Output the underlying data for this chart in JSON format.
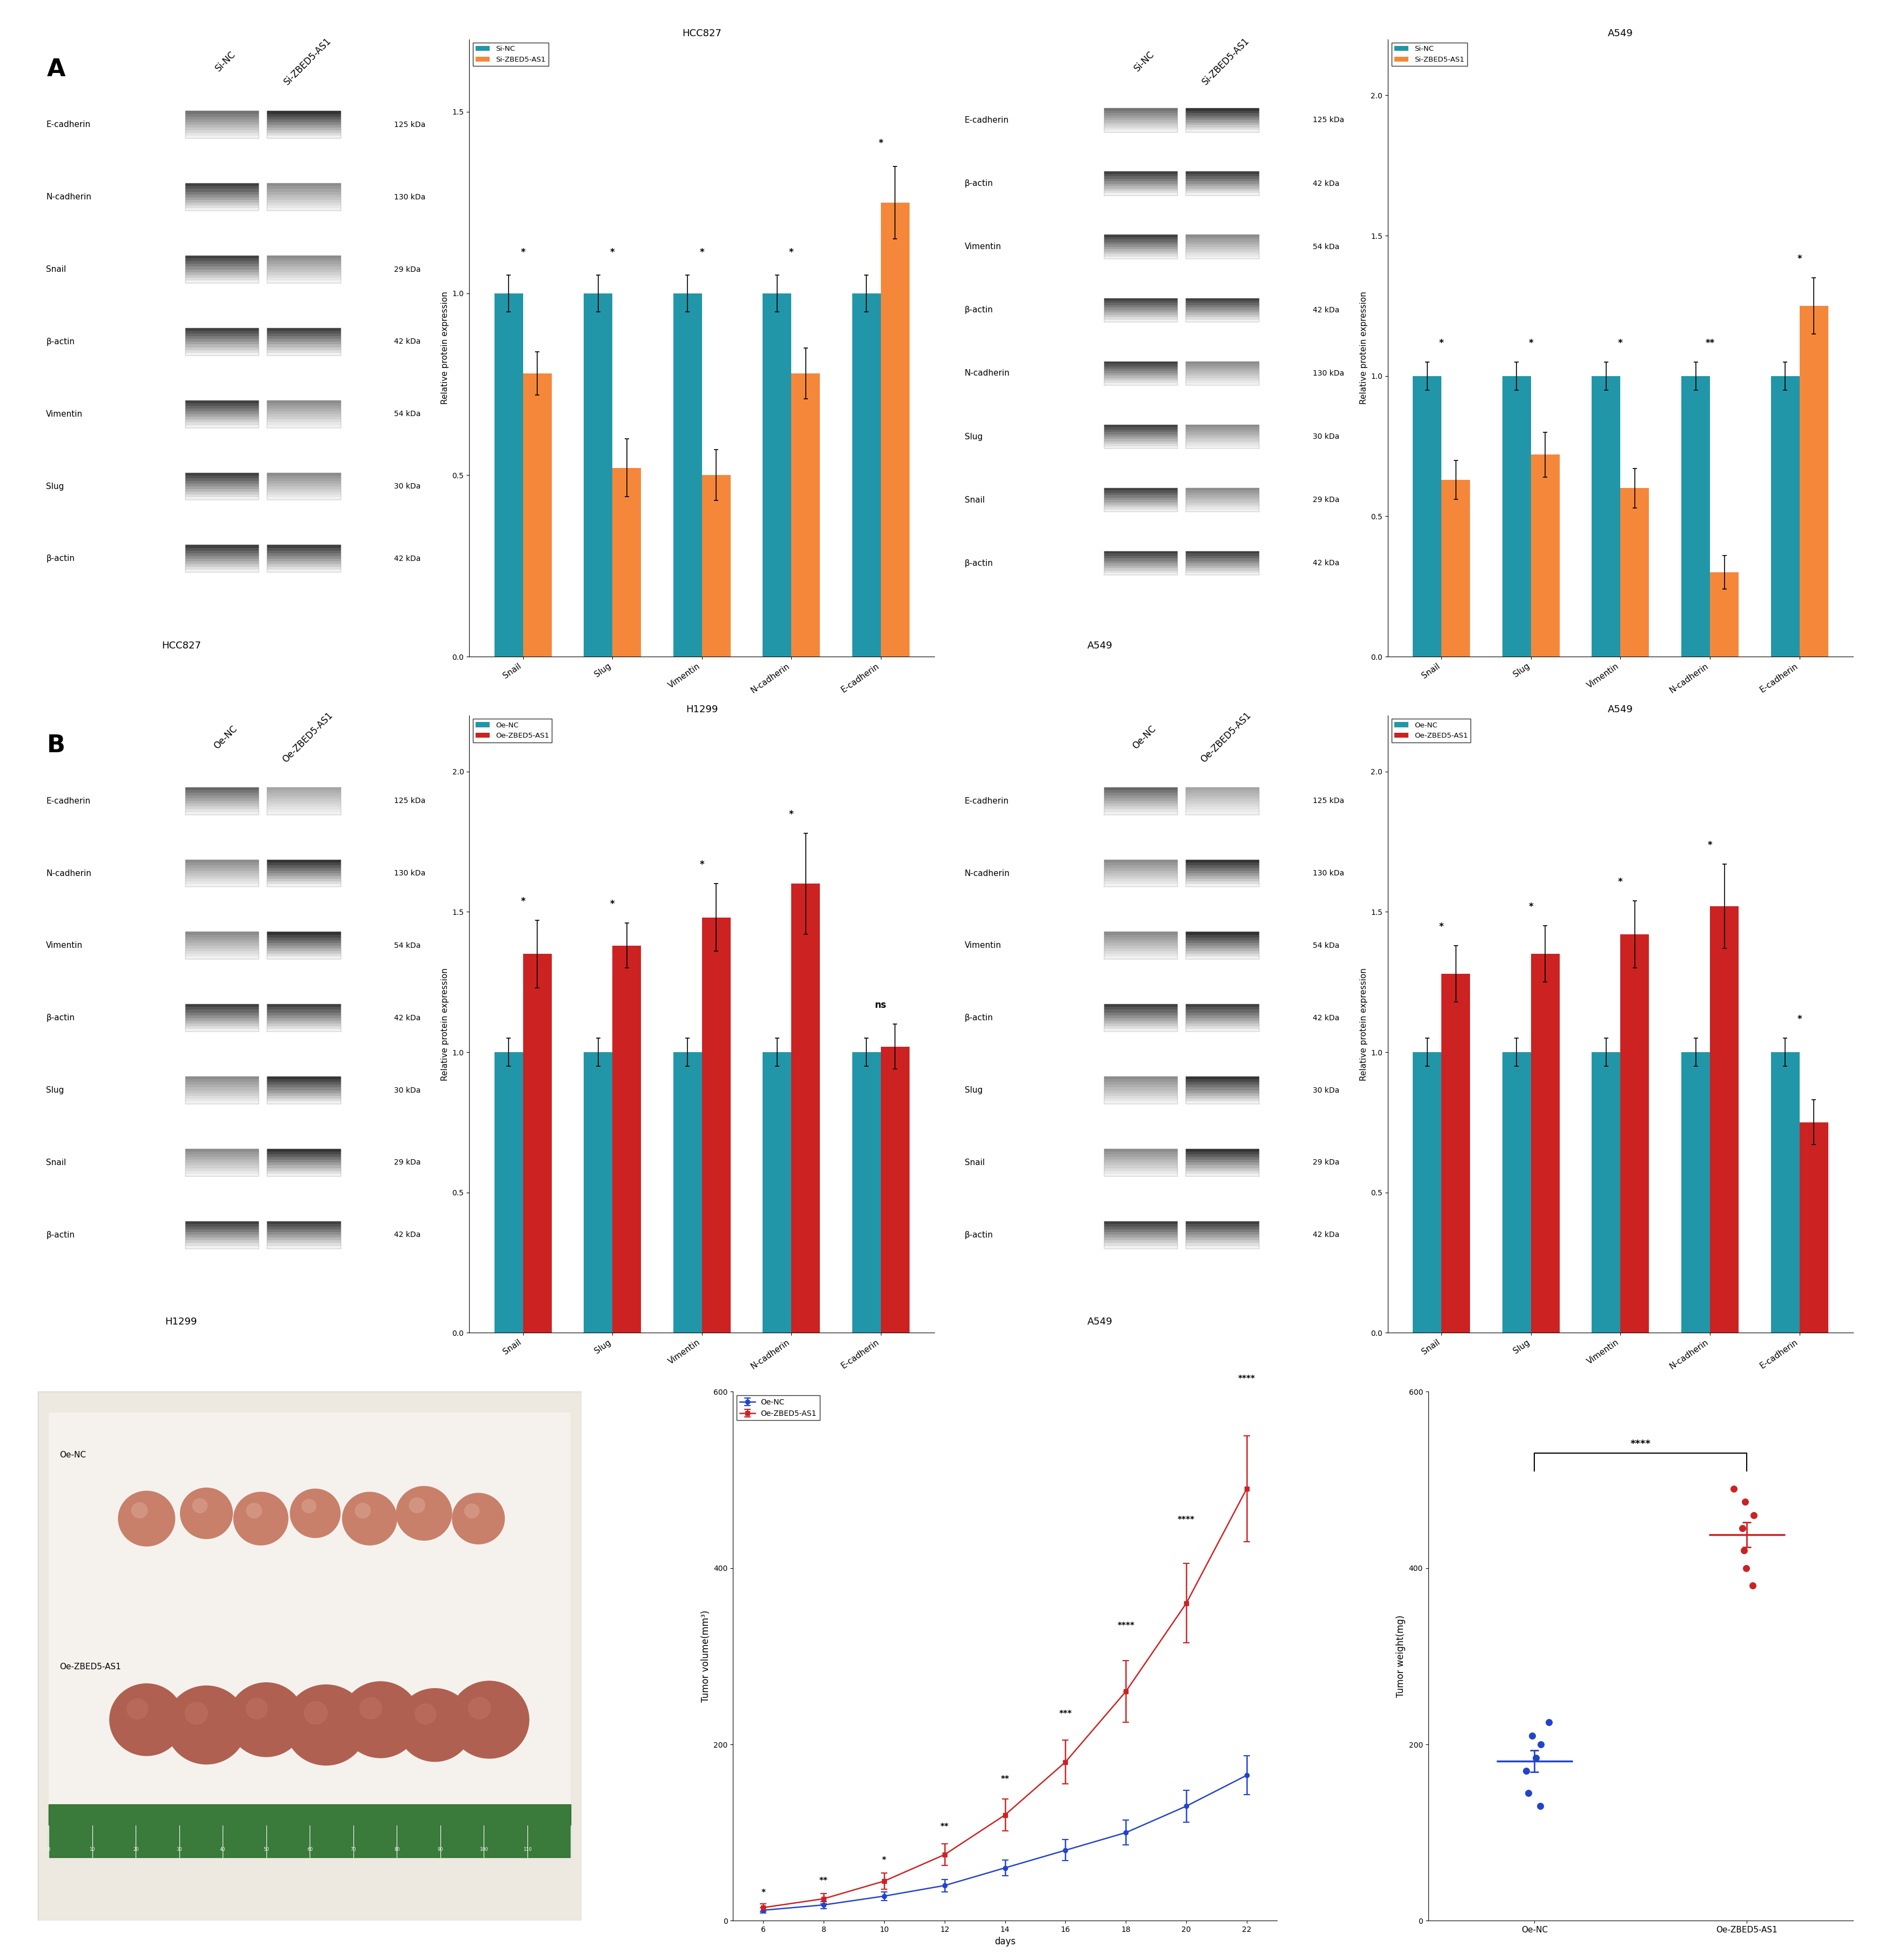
{
  "panel_A_HCC827": {
    "title": "HCC827",
    "categories": [
      "Snail",
      "Slug",
      "Vimentin",
      "N-cadherin",
      "E-cadherin"
    ],
    "si_nc": [
      1.0,
      1.0,
      1.0,
      1.0,
      1.0
    ],
    "si_treatment": [
      0.78,
      0.52,
      0.5,
      0.78,
      1.25
    ],
    "si_nc_err": [
      0.05,
      0.05,
      0.05,
      0.05,
      0.05
    ],
    "si_treatment_err": [
      0.06,
      0.08,
      0.07,
      0.07,
      0.1
    ],
    "ylim": [
      0,
      1.7
    ],
    "yticks": [
      0.0,
      0.5,
      1.0,
      1.5
    ],
    "ylabel": "Relative protein expression",
    "legend1": "Si-NC",
    "legend2": "Si-ZBED5-AS1",
    "color1": "#2196A8",
    "color2": "#F5873B",
    "sig": [
      "*",
      "*",
      "*",
      "*",
      "*"
    ]
  },
  "panel_A_A549": {
    "title": "A549",
    "categories": [
      "Snail",
      "Slug",
      "Vimentin",
      "N-cadherin",
      "E-cadherin"
    ],
    "si_nc": [
      1.0,
      1.0,
      1.0,
      1.0,
      1.0
    ],
    "si_treatment": [
      0.63,
      0.72,
      0.6,
      0.3,
      1.25
    ],
    "si_nc_err": [
      0.05,
      0.05,
      0.05,
      0.05,
      0.05
    ],
    "si_treatment_err": [
      0.07,
      0.08,
      0.07,
      0.06,
      0.1
    ],
    "ylim": [
      0,
      2.2
    ],
    "yticks": [
      0.0,
      0.5,
      1.0,
      1.5,
      2.0
    ],
    "ylabel": "Relative protein expression",
    "legend1": "Si-NC",
    "legend2": "Si-ZBED5-AS1",
    "color1": "#2196A8",
    "color2": "#F5873B",
    "sig": [
      "*",
      "*",
      "*",
      "**",
      "*"
    ]
  },
  "panel_B_H1299": {
    "title": "H1299",
    "categories": [
      "Snail",
      "Slug",
      "Vimentin",
      "N-cadherin",
      "E-cadherin"
    ],
    "oe_nc": [
      1.0,
      1.0,
      1.0,
      1.0,
      1.0
    ],
    "oe_treatment": [
      1.35,
      1.38,
      1.48,
      1.6,
      1.02
    ],
    "oe_nc_err": [
      0.05,
      0.05,
      0.05,
      0.05,
      0.05
    ],
    "oe_treatment_err": [
      0.12,
      0.08,
      0.12,
      0.18,
      0.08
    ],
    "ylim": [
      0,
      2.2
    ],
    "yticks": [
      0.0,
      0.5,
      1.0,
      1.5,
      2.0
    ],
    "ylabel": "Relative protein expression",
    "legend1": "Oe-NC",
    "legend2": "Oe-ZBED5-AS1",
    "color1": "#2196A8",
    "color2": "#CC2222",
    "sig": [
      "*",
      "*",
      "*",
      "*",
      "ns"
    ]
  },
  "panel_B_A549": {
    "title": "A549",
    "categories": [
      "Snail",
      "Slug",
      "Vimentin",
      "N-cadherin",
      "E-cadherin"
    ],
    "oe_nc": [
      1.0,
      1.0,
      1.0,
      1.0,
      1.0
    ],
    "oe_treatment": [
      1.28,
      1.35,
      1.42,
      1.52,
      0.75
    ],
    "oe_nc_err": [
      0.05,
      0.05,
      0.05,
      0.05,
      0.05
    ],
    "oe_treatment_err": [
      0.1,
      0.1,
      0.12,
      0.15,
      0.08
    ],
    "ylim": [
      0,
      2.2
    ],
    "yticks": [
      0.0,
      0.5,
      1.0,
      1.5,
      2.0
    ],
    "ylabel": "Relative protein expression",
    "legend1": "Oe-NC",
    "legend2": "Oe-ZBED5-AS1",
    "color1": "#2196A8",
    "color2": "#CC2222",
    "sig": [
      "*",
      "*",
      "*",
      "*",
      "*"
    ]
  },
  "panel_C_volume": {
    "days": [
      6,
      8,
      10,
      12,
      14,
      16,
      18,
      20,
      22
    ],
    "oe_nc_mean": [
      12,
      18,
      28,
      40,
      60,
      80,
      100,
      130,
      165
    ],
    "oe_nc_err": [
      3,
      4,
      5,
      7,
      9,
      12,
      14,
      18,
      22
    ],
    "oe_zbed_mean": [
      15,
      25,
      45,
      75,
      120,
      180,
      260,
      360,
      490
    ],
    "oe_zbed_err": [
      4,
      6,
      9,
      12,
      18,
      25,
      35,
      45,
      60
    ],
    "ylabel": "Tumor volume(mm³)",
    "xlabel": "days",
    "ylim": [
      0,
      600
    ],
    "yticks": [
      0,
      200,
      400,
      600
    ],
    "legend1": "Oe-NC",
    "legend2": "Oe-ZBED5-AS1",
    "color1": "#2244CC",
    "color2": "#CC2222",
    "sig_days": [
      6,
      8,
      10,
      12,
      14,
      16,
      18,
      20,
      22
    ],
    "sig_labels": [
      "*",
      "**",
      "*",
      "**",
      "**",
      "***",
      "****",
      "****",
      "****"
    ]
  },
  "panel_C_weight": {
    "groups": [
      "Oe-NC",
      "Oe-ZBED5-AS1"
    ],
    "oe_nc_points": [
      130,
      145,
      170,
      185,
      200,
      210,
      225
    ],
    "oe_zbed_points": [
      380,
      400,
      420,
      445,
      460,
      475,
      490
    ],
    "oe_nc_mean": 181,
    "oe_zbed_mean": 438,
    "ylabel": "Tumor weight(mg)",
    "ylim": [
      0,
      600
    ],
    "yticks": [
      0,
      200,
      400,
      600
    ],
    "color1": "#2244CC",
    "color2": "#CC2222",
    "sig": "****"
  },
  "wb_rows_A_HCC827": [
    "E-cadherin",
    "N-cadherin",
    "Snail",
    "β-actin",
    "Vimentin",
    "Slug",
    "β-actin"
  ],
  "wb_kda_A_HCC827": [
    "125 kDa",
    "130 kDa",
    "29 kDa",
    "42 kDa",
    "54 kDa",
    "30 kDa",
    "42 kDa"
  ],
  "wb_rows_A_A549": [
    "E-cadherin",
    "β-actin",
    "Vimentin",
    "β-actin",
    "N-cadherin",
    "Slug",
    "Snail",
    "β-actin"
  ],
  "wb_kda_A_A549": [
    "125 kDa",
    "42 kDa",
    "54 kDa",
    "42 kDa",
    "130 kDa",
    "30 kDa",
    "29 kDa",
    "42 kDa"
  ],
  "wb_rows_B_H1299": [
    "E-cadherin",
    "N-cadherin",
    "Vimentin",
    "β-actin",
    "Slug",
    "Snail",
    "β-actin"
  ],
  "wb_kda_B_H1299": [
    "125 kDa",
    "130 kDa",
    "54 kDa",
    "42 kDa",
    "30 kDa",
    "29 kDa",
    "42 kDa"
  ],
  "wb_rows_B_A549": [
    "E-cadherin",
    "N-cadherin",
    "Vimentin",
    "β-actin",
    "Slug",
    "Snail",
    "β-actin"
  ],
  "wb_kda_B_A549": [
    "125 kDa",
    "130 kDa",
    "54 kDa",
    "42 kDa",
    "30 kDa",
    "29 kDa",
    "42 kDa"
  ],
  "background_color": "#ffffff"
}
